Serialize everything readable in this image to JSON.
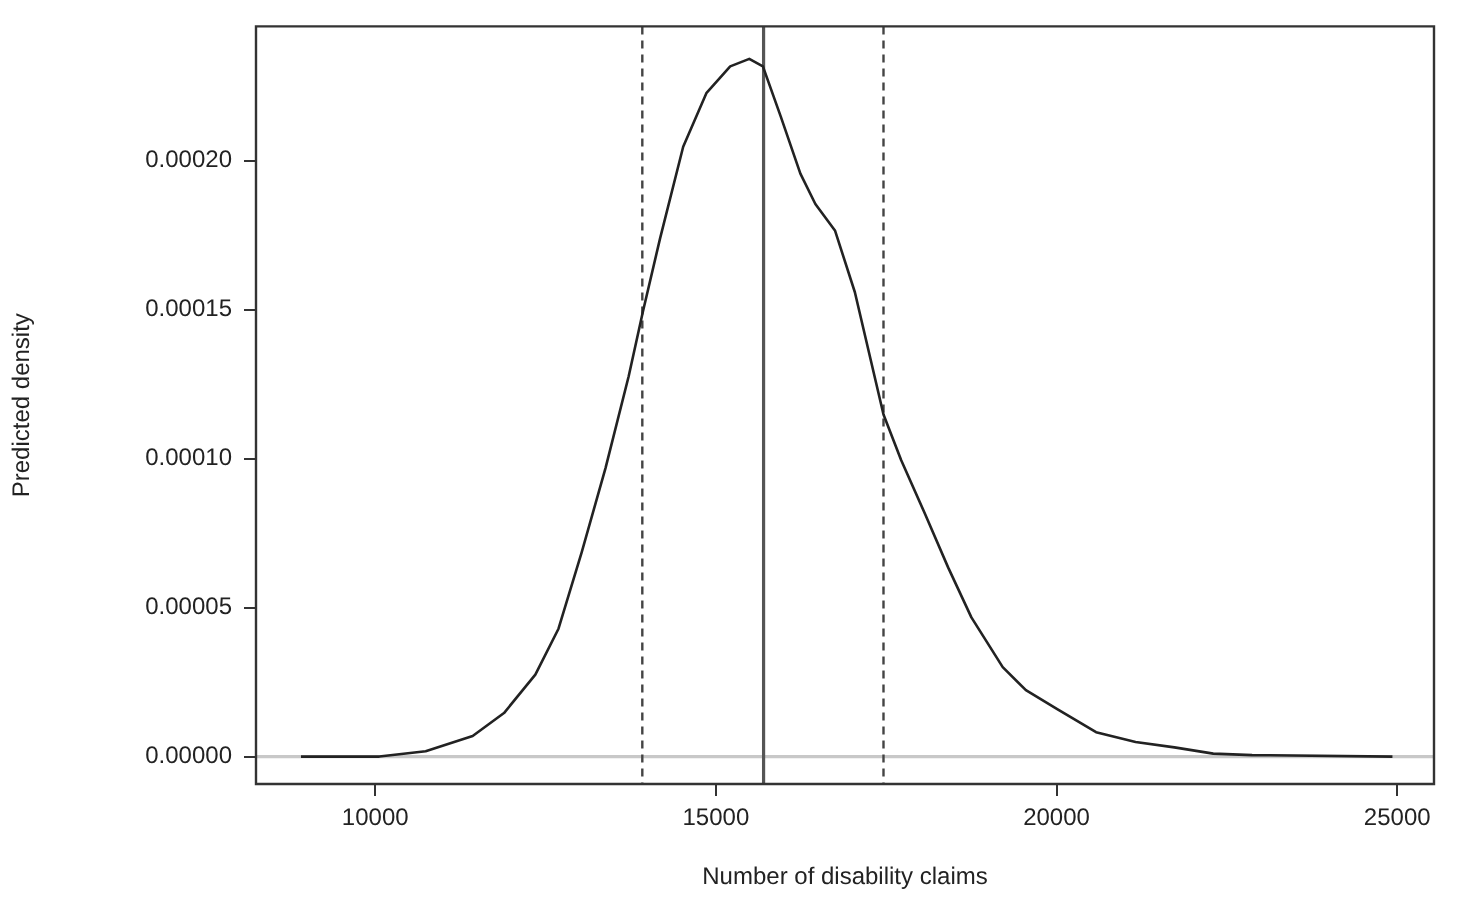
{
  "chart_data": {
    "type": "line",
    "xlabel": "Number of disability claims",
    "ylabel": "Predicted density",
    "xlim": [
      8250,
      25540
    ],
    "ylim": [
      -9.2e-06,
      0.000245
    ],
    "xticks": [
      10000,
      15000,
      20000,
      25000
    ],
    "yticks": [
      {
        "value": 0,
        "label": "0.00000"
      },
      {
        "value": 5e-05,
        "label": "0.00005"
      },
      {
        "value": 0.0001,
        "label": "0.00010"
      },
      {
        "value": 0.00015,
        "label": "0.00015"
      },
      {
        "value": 0.0002,
        "label": "0.00020"
      }
    ],
    "grid": false,
    "legend": false,
    "marker": "none",
    "series": [
      {
        "color": "#222222",
        "line_style": "solid",
        "x": [
          8910,
          10060,
          10740,
          11430,
          11890,
          12350,
          12690,
          13030,
          13380,
          13720,
          13930,
          14180,
          14520,
          14860,
          15210,
          15490,
          15690,
          15950,
          16240,
          16460,
          16750,
          17040,
          17460,
          17720,
          18070,
          18410,
          18750,
          19210,
          19550,
          20010,
          20580,
          21160,
          21730,
          22300,
          22870,
          24930
        ],
        "values": [
          0,
          0,
          1.8e-06,
          6.9e-06,
          1.46e-05,
          2.75e-05,
          4.29e-05,
          6.85e-05,
          9.68e-05,
          0.0001276,
          0.0001494,
          0.0001738,
          0.0002046,
          0.0002226,
          0.0002316,
          0.0002341,
          0.0002316,
          0.0002149,
          0.0001956,
          0.0001854,
          0.0001764,
          0.0001558,
          0.0001148,
          9.94e-05,
          8.14e-05,
          6.34e-05,
          4.67e-05,
          3e-05,
          2.23e-05,
          1.59e-05,
          8.2e-06,
          4.9e-06,
          3.1e-06,
          1e-06,
          5e-07,
          0
        ]
      }
    ],
    "ref_lines": [
      {
        "axis": "y",
        "value": 0,
        "color": "#c8c8c8",
        "line_style": "solid"
      },
      {
        "axis": "x",
        "value": 13920,
        "color": "#444444",
        "line_style": "dashed"
      },
      {
        "axis": "x",
        "value": 15700,
        "color": "#555555",
        "line_style": "solid"
      },
      {
        "axis": "x",
        "value": 17460,
        "color": "#444444",
        "line_style": "dashed"
      }
    ]
  }
}
